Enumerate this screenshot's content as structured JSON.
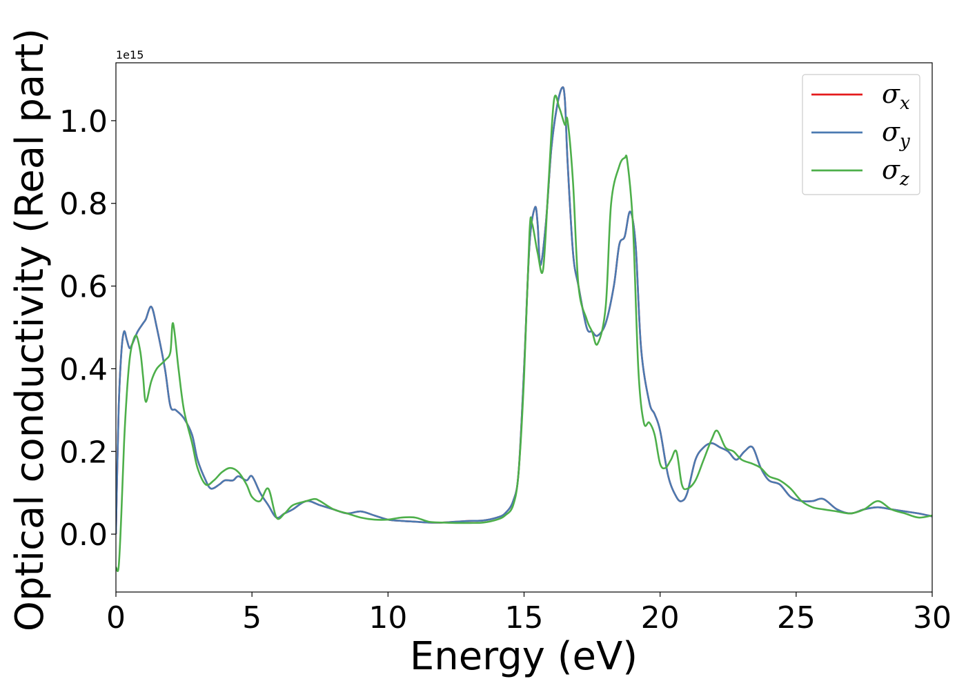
{
  "chart_data": {
    "type": "line",
    "xlabel": "Energy (eV)",
    "ylabel": "Optical conductivity (Real part)",
    "y_offset_label": "1e15",
    "xlim": [
      0,
      30
    ],
    "ylim": [
      -0.14,
      1.14
    ],
    "x_ticks": [
      0,
      5,
      10,
      15,
      20,
      25,
      30
    ],
    "x_tick_labels": [
      "0",
      "5",
      "10",
      "15",
      "20",
      "25",
      "30"
    ],
    "y_ticks": [
      0.0,
      0.2,
      0.4,
      0.6,
      0.8,
      1.0
    ],
    "y_tick_labels": [
      "0.0",
      "0.2",
      "0.4",
      "0.6",
      "0.8",
      "1.0"
    ],
    "grid": false,
    "legend_position": "top-right",
    "series": [
      {
        "name": "σx",
        "symbol": "σ",
        "subscript": "x",
        "color": "#e41a1c",
        "x": [
          0.0,
          0.1,
          0.2,
          0.3,
          0.4,
          0.5,
          0.6,
          0.8,
          1.0,
          1.1,
          1.3,
          1.5,
          1.8,
          2.0,
          2.2,
          2.5,
          2.8,
          3.0,
          3.3,
          3.5,
          3.8,
          4.0,
          4.3,
          4.5,
          4.8,
          5.0,
          5.3,
          5.6,
          5.9,
          6.2,
          6.5,
          7.0,
          7.5,
          8.0,
          8.5,
          9.0,
          9.5,
          10.0,
          10.5,
          11.0,
          11.5,
          12.0,
          12.5,
          13.0,
          13.5,
          14.0,
          14.3,
          14.6,
          14.8,
          15.0,
          15.2,
          15.4,
          15.5,
          15.6,
          15.8,
          16.0,
          16.2,
          16.4,
          16.5,
          16.6,
          16.8,
          17.0,
          17.3,
          17.5,
          17.7,
          18.0,
          18.3,
          18.5,
          18.7,
          18.9,
          19.1,
          19.3,
          19.6,
          19.8,
          20.0,
          20.3,
          20.6,
          20.8,
          21.0,
          21.3,
          21.6,
          21.9,
          22.2,
          22.5,
          22.8,
          23.1,
          23.4,
          23.7,
          24.0,
          24.4,
          24.8,
          25.2,
          25.6,
          26.0,
          26.5,
          27.0,
          27.5,
          28.0,
          28.5,
          29.0,
          29.5,
          30.0
        ],
        "y": [
          0.0,
          0.3,
          0.44,
          0.49,
          0.47,
          0.45,
          0.46,
          0.49,
          0.51,
          0.52,
          0.55,
          0.5,
          0.4,
          0.31,
          0.3,
          0.28,
          0.24,
          0.18,
          0.13,
          0.11,
          0.12,
          0.13,
          0.13,
          0.14,
          0.13,
          0.14,
          0.1,
          0.07,
          0.04,
          0.05,
          0.06,
          0.08,
          0.07,
          0.06,
          0.05,
          0.055,
          0.045,
          0.035,
          0.032,
          0.03,
          0.028,
          0.028,
          0.03,
          0.032,
          0.033,
          0.04,
          0.05,
          0.08,
          0.15,
          0.4,
          0.7,
          0.79,
          0.75,
          0.65,
          0.75,
          0.93,
          1.03,
          1.08,
          1.05,
          0.9,
          0.68,
          0.6,
          0.5,
          0.49,
          0.48,
          0.51,
          0.6,
          0.7,
          0.72,
          0.78,
          0.7,
          0.45,
          0.32,
          0.29,
          0.25,
          0.14,
          0.09,
          0.08,
          0.1,
          0.18,
          0.21,
          0.22,
          0.21,
          0.2,
          0.18,
          0.2,
          0.21,
          0.16,
          0.13,
          0.12,
          0.09,
          0.08,
          0.08,
          0.085,
          0.06,
          0.05,
          0.06,
          0.065,
          0.06,
          0.055,
          0.05,
          0.043
        ]
      },
      {
        "name": "σy",
        "symbol": "σ",
        "subscript": "y",
        "color": "#4a7ab1",
        "x": [
          0.0,
          0.1,
          0.2,
          0.3,
          0.4,
          0.5,
          0.6,
          0.8,
          1.0,
          1.1,
          1.3,
          1.5,
          1.8,
          2.0,
          2.2,
          2.5,
          2.8,
          3.0,
          3.3,
          3.5,
          3.8,
          4.0,
          4.3,
          4.5,
          4.8,
          5.0,
          5.3,
          5.6,
          5.9,
          6.2,
          6.5,
          7.0,
          7.5,
          8.0,
          8.5,
          9.0,
          9.5,
          10.0,
          10.5,
          11.0,
          11.5,
          12.0,
          12.5,
          13.0,
          13.5,
          14.0,
          14.3,
          14.6,
          14.8,
          15.0,
          15.2,
          15.4,
          15.5,
          15.6,
          15.8,
          16.0,
          16.2,
          16.4,
          16.5,
          16.6,
          16.8,
          17.0,
          17.3,
          17.5,
          17.7,
          18.0,
          18.3,
          18.5,
          18.7,
          18.9,
          19.1,
          19.3,
          19.6,
          19.8,
          20.0,
          20.3,
          20.6,
          20.8,
          21.0,
          21.3,
          21.6,
          21.9,
          22.2,
          22.5,
          22.8,
          23.1,
          23.4,
          23.7,
          24.0,
          24.4,
          24.8,
          25.2,
          25.6,
          26.0,
          26.5,
          27.0,
          27.5,
          28.0,
          28.5,
          29.0,
          29.5,
          30.0
        ],
        "y": [
          0.0,
          0.3,
          0.44,
          0.49,
          0.47,
          0.45,
          0.46,
          0.49,
          0.51,
          0.52,
          0.55,
          0.5,
          0.4,
          0.31,
          0.3,
          0.28,
          0.24,
          0.18,
          0.13,
          0.11,
          0.12,
          0.13,
          0.13,
          0.14,
          0.13,
          0.14,
          0.1,
          0.07,
          0.04,
          0.05,
          0.06,
          0.08,
          0.07,
          0.06,
          0.05,
          0.055,
          0.045,
          0.035,
          0.032,
          0.03,
          0.028,
          0.028,
          0.03,
          0.032,
          0.033,
          0.04,
          0.05,
          0.08,
          0.15,
          0.4,
          0.7,
          0.79,
          0.75,
          0.65,
          0.75,
          0.93,
          1.03,
          1.08,
          1.05,
          0.9,
          0.68,
          0.6,
          0.5,
          0.49,
          0.48,
          0.51,
          0.6,
          0.7,
          0.72,
          0.78,
          0.7,
          0.45,
          0.32,
          0.29,
          0.25,
          0.14,
          0.09,
          0.08,
          0.1,
          0.18,
          0.21,
          0.22,
          0.21,
          0.2,
          0.18,
          0.2,
          0.21,
          0.16,
          0.13,
          0.12,
          0.09,
          0.08,
          0.08,
          0.085,
          0.06,
          0.05,
          0.06,
          0.065,
          0.06,
          0.055,
          0.05,
          0.043
        ]
      },
      {
        "name": "σz",
        "symbol": "σ",
        "subscript": "z",
        "color": "#4daf4a",
        "x": [
          0.0,
          0.1,
          0.2,
          0.3,
          0.4,
          0.5,
          0.6,
          0.75,
          0.9,
          1.0,
          1.1,
          1.3,
          1.5,
          1.8,
          2.0,
          2.1,
          2.3,
          2.5,
          2.8,
          3.0,
          3.3,
          3.6,
          3.9,
          4.2,
          4.5,
          4.8,
          5.0,
          5.3,
          5.6,
          5.9,
          6.2,
          6.5,
          7.0,
          7.3,
          7.5,
          8.0,
          8.5,
          9.0,
          9.5,
          10.0,
          10.5,
          11.0,
          11.5,
          12.0,
          12.5,
          13.0,
          13.5,
          14.0,
          14.3,
          14.6,
          14.8,
          15.0,
          15.2,
          15.3,
          15.5,
          15.7,
          15.9,
          16.1,
          16.3,
          16.5,
          16.6,
          16.8,
          17.0,
          17.3,
          17.5,
          17.7,
          18.0,
          18.2,
          18.5,
          18.7,
          18.8,
          19.0,
          19.2,
          19.4,
          19.6,
          19.8,
          20.0,
          20.2,
          20.4,
          20.6,
          20.8,
          21.0,
          21.3,
          21.6,
          21.9,
          22.1,
          22.4,
          22.7,
          23.0,
          23.4,
          23.7,
          24.0,
          24.4,
          24.8,
          25.2,
          25.6,
          26.0,
          26.5,
          27.0,
          27.5,
          28.0,
          28.5,
          29.0,
          29.5,
          30.0
        ],
        "y": [
          -0.08,
          -0.08,
          0.05,
          0.22,
          0.34,
          0.42,
          0.46,
          0.48,
          0.44,
          0.38,
          0.32,
          0.37,
          0.4,
          0.42,
          0.44,
          0.51,
          0.4,
          0.3,
          0.22,
          0.16,
          0.12,
          0.13,
          0.15,
          0.16,
          0.15,
          0.12,
          0.09,
          0.08,
          0.11,
          0.04,
          0.05,
          0.07,
          0.08,
          0.085,
          0.08,
          0.06,
          0.05,
          0.04,
          0.035,
          0.035,
          0.04,
          0.04,
          0.03,
          0.028,
          0.027,
          0.027,
          0.028,
          0.035,
          0.045,
          0.07,
          0.15,
          0.38,
          0.73,
          0.75,
          0.68,
          0.64,
          0.85,
          1.05,
          1.03,
          0.99,
          1.0,
          0.85,
          0.6,
          0.52,
          0.49,
          0.46,
          0.55,
          0.8,
          0.89,
          0.91,
          0.9,
          0.75,
          0.4,
          0.27,
          0.27,
          0.24,
          0.17,
          0.16,
          0.18,
          0.2,
          0.12,
          0.11,
          0.13,
          0.18,
          0.23,
          0.25,
          0.21,
          0.2,
          0.18,
          0.17,
          0.16,
          0.14,
          0.13,
          0.11,
          0.08,
          0.065,
          0.06,
          0.055,
          0.05,
          0.06,
          0.08,
          0.06,
          0.05,
          0.04,
          0.045
        ]
      }
    ]
  }
}
